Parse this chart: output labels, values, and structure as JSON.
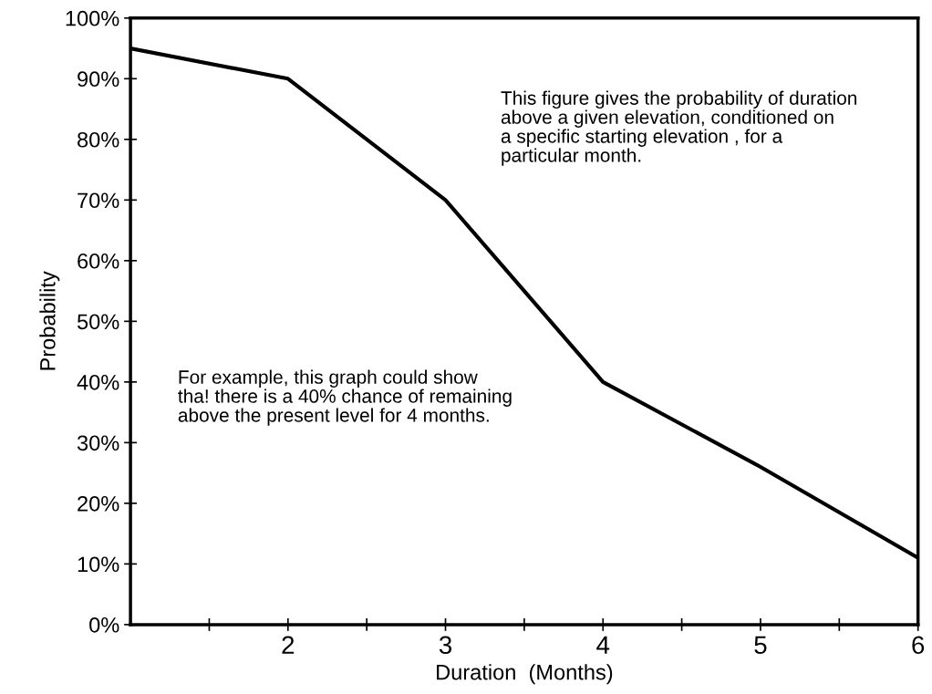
{
  "chart_data": {
    "type": "line",
    "xlabel": "Duration  (Months)",
    "ylabel": "Probability",
    "x": [
      1,
      2,
      3,
      4,
      5,
      6
    ],
    "series": [
      {
        "color": "#000000",
        "values": [
          95,
          90,
          70,
          40,
          26,
          11
        ]
      }
    ],
    "xlim": [
      1,
      6
    ],
    "xticks": [
      {
        "value": 1.5,
        "label": null
      },
      2,
      {
        "value": 2.5,
        "label": null
      },
      3,
      {
        "value": 3.5,
        "label": null
      },
      4,
      {
        "value": 4.5,
        "label": null
      },
      5,
      {
        "value": 5.5,
        "label": null
      },
      6
    ],
    "ylim": [
      0,
      100
    ],
    "yticks": [
      {
        "value": 0,
        "label": "0%"
      },
      {
        "value": 10,
        "label": "10%"
      },
      {
        "value": 20,
        "label": "20%"
      },
      {
        "value": 30,
        "label": "30%"
      },
      {
        "value": 40,
        "label": "40%"
      },
      {
        "value": 50,
        "label": "50%"
      },
      {
        "value": 60,
        "label": "60%"
      },
      {
        "value": 70,
        "label": "70%"
      },
      {
        "value": 80,
        "label": "80%"
      },
      {
        "value": 90,
        "label": "90%"
      },
      {
        "value": 100,
        "label": "100%"
      }
    ],
    "annotations": [
      "This figure gives the probability of duration\nabove a given elevation, conditioned on\na specific starting elevation , for a\nparticular month.",
      "For example, this graph could show\ntha! there is a 40% chance of remaining\nabove the present level for 4 months."
    ],
    "grid": false,
    "legend": false,
    "marker": "none",
    "line_style": "solid"
  }
}
